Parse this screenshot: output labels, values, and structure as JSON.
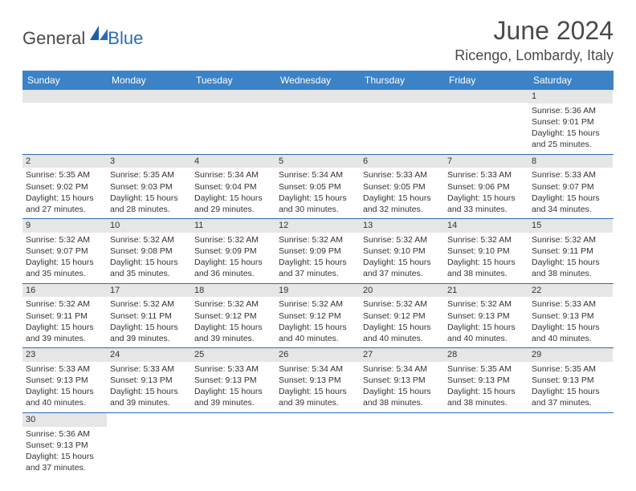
{
  "logo": {
    "text1": "General",
    "text2": "Blue"
  },
  "title": "June 2024",
  "location": "Ricengo, Lombardy, Italy",
  "colors": {
    "header_bg": "#3b82c7",
    "header_text": "#ffffff",
    "daybar_bg": "#e6e6e6",
    "border": "#2a6db5",
    "text": "#333333",
    "logo_gray": "#4a4a4a",
    "logo_blue": "#2a6db5"
  },
  "weekdays": [
    "Sunday",
    "Monday",
    "Tuesday",
    "Wednesday",
    "Thursday",
    "Friday",
    "Saturday"
  ],
  "weeks": [
    [
      {
        "n": "",
        "sr": "",
        "ss": "",
        "dl": ""
      },
      {
        "n": "",
        "sr": "",
        "ss": "",
        "dl": ""
      },
      {
        "n": "",
        "sr": "",
        "ss": "",
        "dl": ""
      },
      {
        "n": "",
        "sr": "",
        "ss": "",
        "dl": ""
      },
      {
        "n": "",
        "sr": "",
        "ss": "",
        "dl": ""
      },
      {
        "n": "",
        "sr": "",
        "ss": "",
        "dl": ""
      },
      {
        "n": "1",
        "sr": "Sunrise: 5:36 AM",
        "ss": "Sunset: 9:01 PM",
        "dl": "Daylight: 15 hours and 25 minutes."
      }
    ],
    [
      {
        "n": "2",
        "sr": "Sunrise: 5:35 AM",
        "ss": "Sunset: 9:02 PM",
        "dl": "Daylight: 15 hours and 27 minutes."
      },
      {
        "n": "3",
        "sr": "Sunrise: 5:35 AM",
        "ss": "Sunset: 9:03 PM",
        "dl": "Daylight: 15 hours and 28 minutes."
      },
      {
        "n": "4",
        "sr": "Sunrise: 5:34 AM",
        "ss": "Sunset: 9:04 PM",
        "dl": "Daylight: 15 hours and 29 minutes."
      },
      {
        "n": "5",
        "sr": "Sunrise: 5:34 AM",
        "ss": "Sunset: 9:05 PM",
        "dl": "Daylight: 15 hours and 30 minutes."
      },
      {
        "n": "6",
        "sr": "Sunrise: 5:33 AM",
        "ss": "Sunset: 9:05 PM",
        "dl": "Daylight: 15 hours and 32 minutes."
      },
      {
        "n": "7",
        "sr": "Sunrise: 5:33 AM",
        "ss": "Sunset: 9:06 PM",
        "dl": "Daylight: 15 hours and 33 minutes."
      },
      {
        "n": "8",
        "sr": "Sunrise: 5:33 AM",
        "ss": "Sunset: 9:07 PM",
        "dl": "Daylight: 15 hours and 34 minutes."
      }
    ],
    [
      {
        "n": "9",
        "sr": "Sunrise: 5:32 AM",
        "ss": "Sunset: 9:07 PM",
        "dl": "Daylight: 15 hours and 35 minutes."
      },
      {
        "n": "10",
        "sr": "Sunrise: 5:32 AM",
        "ss": "Sunset: 9:08 PM",
        "dl": "Daylight: 15 hours and 35 minutes."
      },
      {
        "n": "11",
        "sr": "Sunrise: 5:32 AM",
        "ss": "Sunset: 9:09 PM",
        "dl": "Daylight: 15 hours and 36 minutes."
      },
      {
        "n": "12",
        "sr": "Sunrise: 5:32 AM",
        "ss": "Sunset: 9:09 PM",
        "dl": "Daylight: 15 hours and 37 minutes."
      },
      {
        "n": "13",
        "sr": "Sunrise: 5:32 AM",
        "ss": "Sunset: 9:10 PM",
        "dl": "Daylight: 15 hours and 37 minutes."
      },
      {
        "n": "14",
        "sr": "Sunrise: 5:32 AM",
        "ss": "Sunset: 9:10 PM",
        "dl": "Daylight: 15 hours and 38 minutes."
      },
      {
        "n": "15",
        "sr": "Sunrise: 5:32 AM",
        "ss": "Sunset: 9:11 PM",
        "dl": "Daylight: 15 hours and 38 minutes."
      }
    ],
    [
      {
        "n": "16",
        "sr": "Sunrise: 5:32 AM",
        "ss": "Sunset: 9:11 PM",
        "dl": "Daylight: 15 hours and 39 minutes."
      },
      {
        "n": "17",
        "sr": "Sunrise: 5:32 AM",
        "ss": "Sunset: 9:11 PM",
        "dl": "Daylight: 15 hours and 39 minutes."
      },
      {
        "n": "18",
        "sr": "Sunrise: 5:32 AM",
        "ss": "Sunset: 9:12 PM",
        "dl": "Daylight: 15 hours and 39 minutes."
      },
      {
        "n": "19",
        "sr": "Sunrise: 5:32 AM",
        "ss": "Sunset: 9:12 PM",
        "dl": "Daylight: 15 hours and 40 minutes."
      },
      {
        "n": "20",
        "sr": "Sunrise: 5:32 AM",
        "ss": "Sunset: 9:12 PM",
        "dl": "Daylight: 15 hours and 40 minutes."
      },
      {
        "n": "21",
        "sr": "Sunrise: 5:32 AM",
        "ss": "Sunset: 9:13 PM",
        "dl": "Daylight: 15 hours and 40 minutes."
      },
      {
        "n": "22",
        "sr": "Sunrise: 5:33 AM",
        "ss": "Sunset: 9:13 PM",
        "dl": "Daylight: 15 hours and 40 minutes."
      }
    ],
    [
      {
        "n": "23",
        "sr": "Sunrise: 5:33 AM",
        "ss": "Sunset: 9:13 PM",
        "dl": "Daylight: 15 hours and 40 minutes."
      },
      {
        "n": "24",
        "sr": "Sunrise: 5:33 AM",
        "ss": "Sunset: 9:13 PM",
        "dl": "Daylight: 15 hours and 39 minutes."
      },
      {
        "n": "25",
        "sr": "Sunrise: 5:33 AM",
        "ss": "Sunset: 9:13 PM",
        "dl": "Daylight: 15 hours and 39 minutes."
      },
      {
        "n": "26",
        "sr": "Sunrise: 5:34 AM",
        "ss": "Sunset: 9:13 PM",
        "dl": "Daylight: 15 hours and 39 minutes."
      },
      {
        "n": "27",
        "sr": "Sunrise: 5:34 AM",
        "ss": "Sunset: 9:13 PM",
        "dl": "Daylight: 15 hours and 38 minutes."
      },
      {
        "n": "28",
        "sr": "Sunrise: 5:35 AM",
        "ss": "Sunset: 9:13 PM",
        "dl": "Daylight: 15 hours and 38 minutes."
      },
      {
        "n": "29",
        "sr": "Sunrise: 5:35 AM",
        "ss": "Sunset: 9:13 PM",
        "dl": "Daylight: 15 hours and 37 minutes."
      }
    ],
    [
      {
        "n": "30",
        "sr": "Sunrise: 5:36 AM",
        "ss": "Sunset: 9:13 PM",
        "dl": "Daylight: 15 hours and 37 minutes."
      },
      {
        "n": "",
        "sr": "",
        "ss": "",
        "dl": ""
      },
      {
        "n": "",
        "sr": "",
        "ss": "",
        "dl": ""
      },
      {
        "n": "",
        "sr": "",
        "ss": "",
        "dl": ""
      },
      {
        "n": "",
        "sr": "",
        "ss": "",
        "dl": ""
      },
      {
        "n": "",
        "sr": "",
        "ss": "",
        "dl": ""
      },
      {
        "n": "",
        "sr": "",
        "ss": "",
        "dl": ""
      }
    ]
  ]
}
